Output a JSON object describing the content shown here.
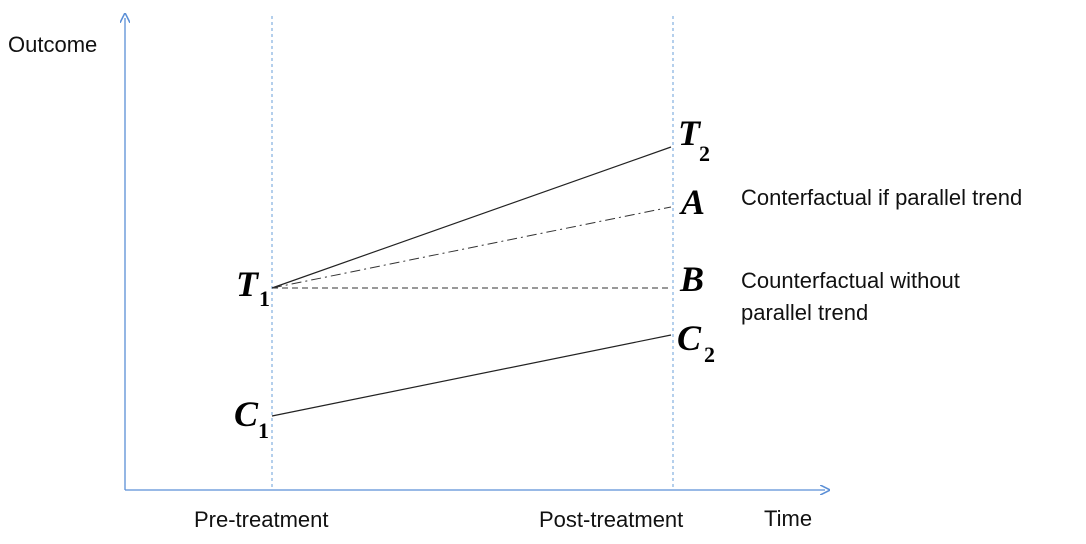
{
  "labels": {
    "y_axis": "Outcome",
    "x_axis": "Time",
    "pre": "Pre-treatment",
    "post": "Post-treatment"
  },
  "points": {
    "t1": {
      "letter": "T",
      "sub": "1"
    },
    "t2": {
      "letter": "T",
      "sub": "2"
    },
    "a": {
      "letter": "A"
    },
    "b": {
      "letter": "B"
    },
    "c1": {
      "letter": "C",
      "sub": "1"
    },
    "c2": {
      "letter": "C",
      "sub": "2"
    }
  },
  "annotations": {
    "parallel": "Conterfactual if parallel trend",
    "no_parallel_1": "Counterfactual without",
    "no_parallel_2": "parallel trend"
  },
  "colors": {
    "axis": "#5b8fd6",
    "guide": "#6a9fd8",
    "line": "#222222"
  }
}
